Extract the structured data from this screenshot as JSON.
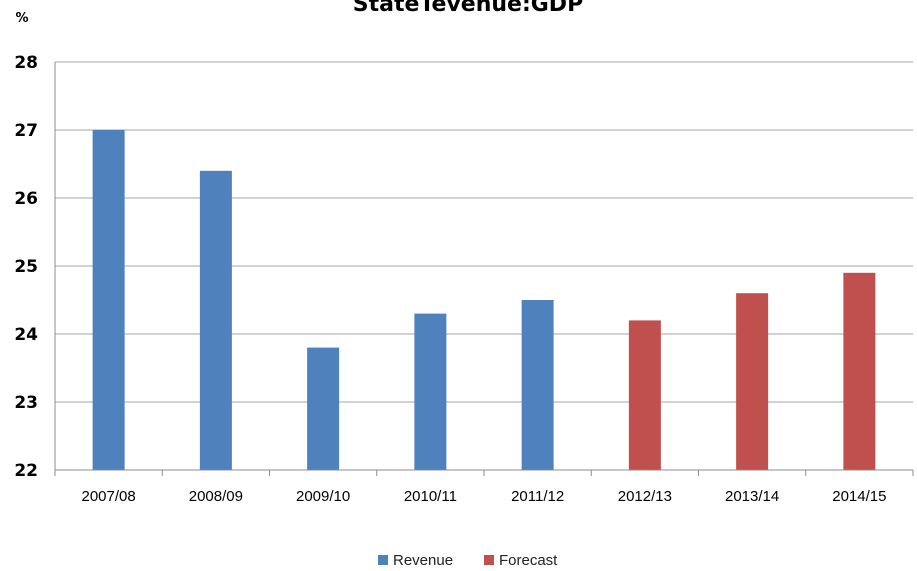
{
  "chart_data": {
    "type": "bar",
    "title": "StateTevenue:GDP",
    "ylabel": "%",
    "ylim": [
      22,
      28
    ],
    "yticks": [
      22,
      23,
      24,
      25,
      26,
      27,
      28
    ],
    "categories": [
      "2007/08",
      "2008/09",
      "2009/10",
      "2010/11",
      "2011/12",
      "2012/13",
      "2013/14",
      "2014/15"
    ],
    "series": [
      {
        "name": "Revenue",
        "color": "#4f81bd",
        "values": [
          27.0,
          26.4,
          23.8,
          24.3,
          24.5,
          null,
          null,
          null
        ]
      },
      {
        "name": "Forecast",
        "color": "#c0504d",
        "values": [
          null,
          null,
          null,
          null,
          null,
          24.2,
          24.6,
          24.9
        ]
      }
    ],
    "grid": true,
    "legend_position": "bottom"
  }
}
